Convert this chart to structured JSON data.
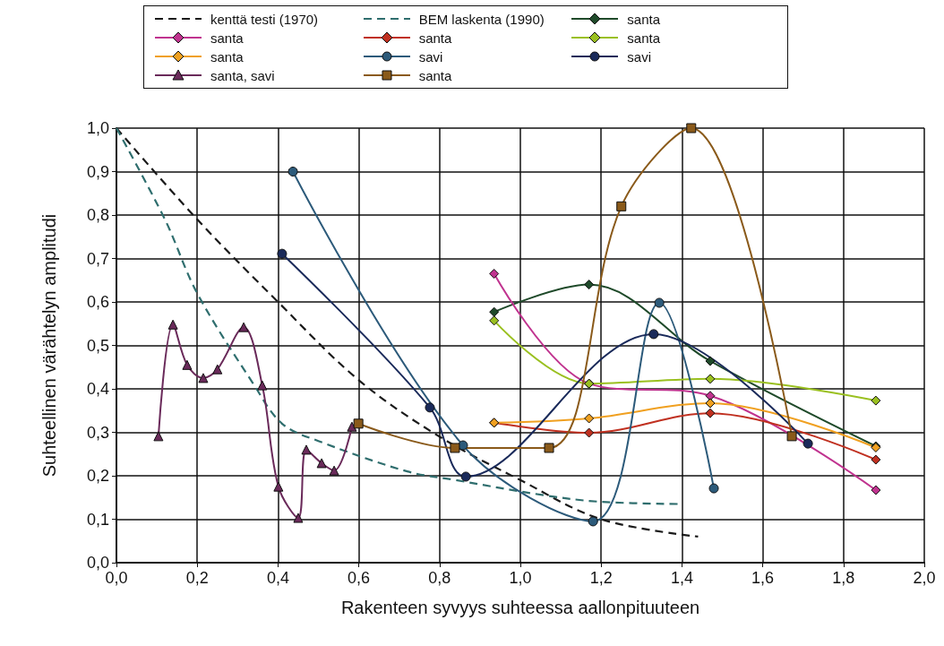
{
  "chart_data": {
    "type": "line",
    "xlabel": "Rakenteen syvyys suhteessa aallonpituuteen",
    "ylabel": "Suhteellinen värähtelyn amplitudi",
    "xlim": [
      0,
      2
    ],
    "ylim": [
      0,
      1
    ],
    "xticks": [
      {
        "value": 0,
        "label": "0,0"
      },
      {
        "value": 0.2,
        "label": "0,2"
      },
      {
        "value": 0.4,
        "label": "0,4"
      },
      {
        "value": 0.6,
        "label": "0,6"
      },
      {
        "value": 0.8,
        "label": "0,8"
      },
      {
        "value": 1,
        "label": "1,0"
      },
      {
        "value": 1.2,
        "label": "1,2"
      },
      {
        "value": 1.4,
        "label": "1,4"
      },
      {
        "value": 1.6,
        "label": "1,6"
      },
      {
        "value": 1.8,
        "label": "1,8"
      },
      {
        "value": 2,
        "label": "2,0"
      }
    ],
    "yticks": [
      {
        "value": 0,
        "label": "0,0"
      },
      {
        "value": 0.1,
        "label": "0,1"
      },
      {
        "value": 0.2,
        "label": "0,2"
      },
      {
        "value": 0.3,
        "label": "0,3"
      },
      {
        "value": 0.4,
        "label": "0,4"
      },
      {
        "value": 0.5,
        "label": "0,5"
      },
      {
        "value": 0.6,
        "label": "0,6"
      },
      {
        "value": 0.7,
        "label": "0,7"
      },
      {
        "value": 0.8,
        "label": "0,8"
      },
      {
        "value": 0.9,
        "label": "0,9"
      },
      {
        "value": 1,
        "label": "1,0"
      }
    ],
    "grid": true,
    "legend": "top",
    "series": [
      {
        "name": "kenttä testi (1970)",
        "color": "#1a1a1a",
        "marker": "none",
        "line_style": "dashed",
        "x": [
          0,
          0.2,
          0.4,
          0.6,
          0.8,
          1.0,
          1.2,
          1.44
        ],
        "values": [
          1.0,
          0.79,
          0.6,
          0.42,
          0.29,
          0.19,
          0.1,
          0.06
        ]
      },
      {
        "name": "BEM laskenta (1990)",
        "color": "#2f6e6e",
        "marker": "none",
        "line_style": "dashed",
        "x": [
          0,
          0.12,
          0.2,
          0.34,
          0.41,
          0.5,
          0.72,
          0.84,
          1.06,
          1.2,
          1.4
        ],
        "values": [
          1.0,
          0.79,
          0.62,
          0.41,
          0.32,
          0.28,
          0.21,
          0.19,
          0.155,
          0.14,
          0.135
        ]
      },
      {
        "name": "santa",
        "color": "#1f4a2a",
        "marker": "diamond",
        "line_style": "solid",
        "x": [
          0.935,
          1.17,
          1.47,
          1.88
        ],
        "values": [
          0.577,
          0.64,
          0.464,
          0.268
        ]
      },
      {
        "name": "santa",
        "color": "#c0338f",
        "marker": "diamond",
        "line_style": "solid",
        "x": [
          0.935,
          1.17,
          1.47,
          1.88
        ],
        "values": [
          0.665,
          0.412,
          0.384,
          0.167
        ]
      },
      {
        "name": "santa",
        "color": "#c03020",
        "marker": "diamond",
        "line_style": "solid",
        "x": [
          0.935,
          1.17,
          1.47,
          1.88
        ],
        "values": [
          0.322,
          0.299,
          0.344,
          0.237
        ]
      },
      {
        "name": "santa",
        "color": "#9ac020",
        "marker": "diamond",
        "line_style": "solid",
        "x": [
          0.935,
          1.17,
          1.47,
          1.88
        ],
        "values": [
          0.557,
          0.412,
          0.423,
          0.373
        ]
      },
      {
        "name": "santa",
        "color": "#f0a020",
        "marker": "diamond",
        "line_style": "solid",
        "x": [
          0.935,
          1.17,
          1.47,
          1.88
        ],
        "values": [
          0.322,
          0.332,
          0.367,
          0.265
        ]
      },
      {
        "name": "savi",
        "color": "#2c5a7a",
        "marker": "circle",
        "line_style": "solid",
        "x": [
          0.437,
          0.858,
          1.18,
          1.344,
          1.479
        ],
        "values": [
          0.9,
          0.27,
          0.095,
          0.598,
          0.171
        ]
      },
      {
        "name": "savi",
        "color": "#1a2a5a",
        "marker": "circle",
        "line_style": "solid",
        "x": [
          0.41,
          0.776,
          0.865,
          1.33,
          1.712
        ],
        "values": [
          0.711,
          0.357,
          0.198,
          0.526,
          0.274
        ]
      },
      {
        "name": "santa, savi",
        "color": "#6a2a5a",
        "marker": "triangle",
        "line_style": "solid",
        "x": [
          0.104,
          0.14,
          0.175,
          0.215,
          0.25,
          0.315,
          0.361,
          0.401,
          0.45,
          0.47,
          0.508,
          0.539,
          0.583
        ],
        "values": [
          0.291,
          0.548,
          0.455,
          0.425,
          0.445,
          0.542,
          0.408,
          0.175,
          0.103,
          0.26,
          0.229,
          0.212,
          0.313
        ]
      },
      {
        "name": "santa",
        "color": "#8a5a1a",
        "marker": "square",
        "line_style": "solid",
        "x": [
          0.599,
          0.838,
          1.071,
          1.25,
          1.423,
          1.672
        ],
        "values": [
          0.32,
          0.264,
          0.264,
          0.82,
          1.0,
          0.291
        ]
      }
    ]
  }
}
